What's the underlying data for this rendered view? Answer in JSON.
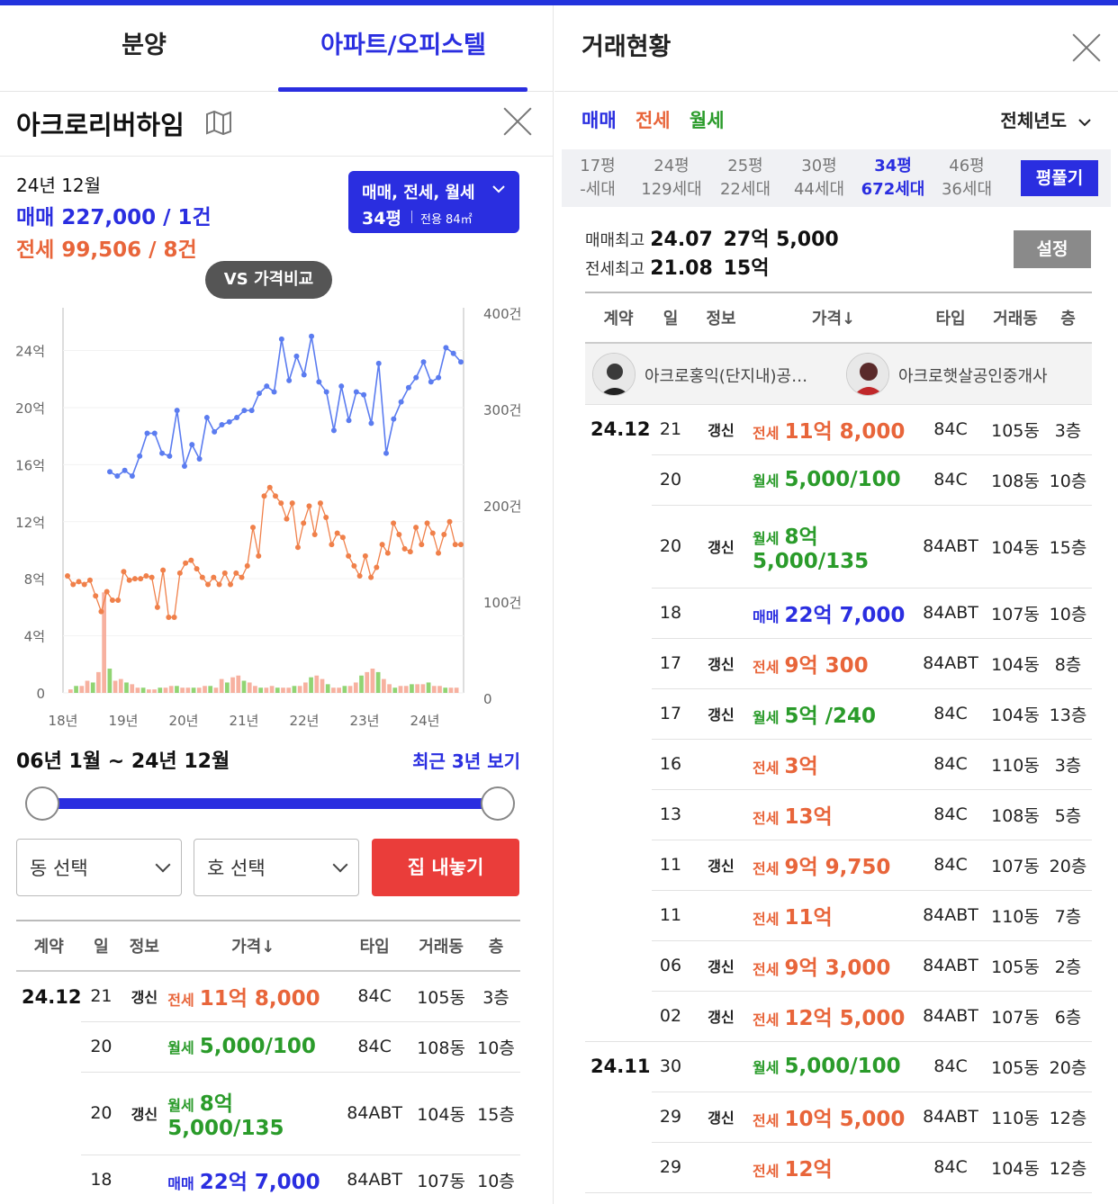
{
  "left": {
    "tabs": [
      "분양",
      "아파트/오피스텔"
    ],
    "apt_name": "아크로리버하임",
    "summary": {
      "date": "24년 12월",
      "sale": "매매 227,000 / 1건",
      "rent": "전세 99,506 / 8건"
    },
    "selector": {
      "types": "매매, 전세, 월세",
      "pyeong": "34평",
      "area": "전용 84㎡"
    },
    "vs_button": "VS 가격비교",
    "chart_data": {
      "type": "line",
      "x_ticks": [
        "18년",
        "19년",
        "20년",
        "21년",
        "22년",
        "23년",
        "24년"
      ],
      "y_left_ticks": [
        "24억",
        "20억",
        "16억",
        "12억",
        "8억",
        "4억",
        "0"
      ],
      "y_right_ticks": [
        "400건",
        "300건",
        "200건",
        "100건",
        "0"
      ],
      "ylim_left": [
        0,
        27
      ],
      "ylim_right": [
        0,
        400
      ],
      "series": [
        {
          "kind": "매매",
          "color": "#5b7cf0",
          "values": [
            15.5,
            15.2,
            15.6,
            15.2,
            16.6,
            18.2,
            18.2,
            16.8,
            16.6,
            19.8,
            15.9,
            17.4,
            16.4,
            19.3,
            18.3,
            18.8,
            19,
            19.3,
            19.8,
            19.8,
            21,
            21.5,
            21.1,
            24.8,
            21.9,
            23.6,
            22.3,
            25,
            21.8,
            21.1,
            18.4,
            21.5,
            19.1,
            21.1,
            20.9,
            18.9,
            23.1,
            16.8,
            19.2,
            20.4,
            21.4,
            22.1,
            23.2,
            21.8,
            22.1,
            24.2,
            23.8,
            23.2
          ]
        },
        {
          "kind": "전세",
          "color": "#f0804a",
          "values": [
            8.2,
            7.6,
            7.8,
            7.6,
            7.9,
            6.8,
            5.7,
            7.1,
            6.5,
            6.5,
            8.5,
            7.9,
            8,
            8,
            8.2,
            8.1,
            6,
            8.6,
            5.3,
            5.3,
            8.4,
            9.1,
            9.3,
            8.7,
            8.1,
            7.6,
            8.1,
            7.6,
            8.4,
            7.6,
            8.4,
            8.1,
            8.9,
            11.6,
            9.6,
            13.8,
            14.4,
            13.8,
            13.3,
            12.2,
            13.3,
            10.2,
            11.9,
            13.1,
            11.1,
            13.3,
            12.3,
            10.4,
            11.2,
            10.9,
            9.6,
            8.9,
            8.2,
            9.6,
            8.1,
            8.8,
            10.4,
            9.8,
            11.9,
            11.1,
            10.1,
            9.9,
            11.6,
            10.4,
            11.9,
            11.2,
            9.8,
            11.1,
            12,
            10.4,
            10.4
          ]
        }
      ],
      "volume_bars": [
        2,
        4,
        4,
        7,
        6,
        12,
        58,
        14,
        7,
        8,
        6,
        5,
        3,
        3,
        2,
        2,
        3,
        3,
        4,
        4,
        3,
        3,
        3,
        3,
        4,
        4,
        3,
        8,
        6,
        9,
        10,
        7,
        6,
        4,
        3,
        3,
        4,
        3,
        3,
        3,
        4,
        4,
        6,
        9,
        10,
        8,
        5,
        3,
        3,
        4,
        4,
        6,
        10,
        12,
        14,
        12,
        8,
        5,
        3,
        4,
        4,
        5,
        5,
        5,
        6,
        4,
        4,
        3,
        3,
        3
      ]
    },
    "range": {
      "label": "06년 1월 ~ 24년 12월",
      "link": "최근 3년 보기"
    },
    "dropdowns": {
      "dong": "동 선택",
      "ho": "호 선택",
      "list_button": "집 내놓기"
    },
    "table": {
      "headers": [
        "계약",
        "일",
        "정보",
        "가격↓",
        "타입",
        "거래동",
        "층"
      ],
      "rows": [
        {
          "date": "24.12",
          "day": "21",
          "info": "갱신",
          "kind": "전세",
          "kindClass": "c-jeon",
          "price": "11억 8,000",
          "type": "84C",
          "dong": "105동",
          "floor": "3층"
        },
        {
          "date": "",
          "day": "20",
          "info": "",
          "kind": "월세",
          "kindClass": "c-wol",
          "price": "5,000/100",
          "type": "84C",
          "dong": "108동",
          "floor": "10층"
        },
        {
          "date": "",
          "day": "20",
          "info": "갱신",
          "kind": "월세",
          "kindClass": "c-wol",
          "price": "8억 5,000/135",
          "type": "84ABT",
          "dong": "104동",
          "floor": "15층"
        },
        {
          "date": "",
          "day": "18",
          "info": "",
          "kind": "매매",
          "kindClass": "c-sale",
          "price": "22억 7,000",
          "type": "84ABT",
          "dong": "107동",
          "floor": "10층"
        }
      ]
    }
  },
  "right": {
    "title": "거래현황",
    "filters": [
      "매매",
      "전세",
      "월세"
    ],
    "year_select": "전체년도",
    "sizes": [
      {
        "p": "17평",
        "h": "-세대"
      },
      {
        "p": "24평",
        "h": "129세대"
      },
      {
        "p": "25평",
        "h": "22세대"
      },
      {
        "p": "30평",
        "h": "44세대"
      },
      {
        "p": "34평",
        "h": "672세대"
      },
      {
        "p": "46평",
        "h": "36세대"
      }
    ],
    "pyeong_btn": "평풀기",
    "max_sale": {
      "label": "매매최고",
      "date": "24.07",
      "price": "27억 5,000"
    },
    "max_rent": {
      "label": "전세최고",
      "date": "21.08",
      "price": "15억"
    },
    "settings_btn": "설정",
    "agents": [
      "아크로홍익(단지내)공…",
      "아크로햇살공인중개사"
    ],
    "headers": [
      "계약",
      "일",
      "정보",
      "가격↓",
      "타입",
      "거래동",
      "층"
    ],
    "rows": [
      {
        "date": "24.12",
        "day": "21",
        "info": "갱신",
        "kind": "전세",
        "kindClass": "c-jeon",
        "price": "11억 8,000",
        "type": "84C",
        "dong": "105동",
        "floor": "3층"
      },
      {
        "date": "",
        "day": "20",
        "info": "",
        "kind": "월세",
        "kindClass": "c-wol",
        "price": "5,000/100",
        "type": "84C",
        "dong": "108동",
        "floor": "10층"
      },
      {
        "date": "",
        "day": "20",
        "info": "갱신",
        "kind": "월세",
        "kindClass": "c-wol",
        "price": "8억 5,000/135",
        "type": "84ABT",
        "dong": "104동",
        "floor": "15층"
      },
      {
        "date": "",
        "day": "18",
        "info": "",
        "kind": "매매",
        "kindClass": "c-sale",
        "price": "22억 7,000",
        "type": "84ABT",
        "dong": "107동",
        "floor": "10층"
      },
      {
        "date": "",
        "day": "17",
        "info": "갱신",
        "kind": "전세",
        "kindClass": "c-jeon",
        "price": "9억 300",
        "type": "84ABT",
        "dong": "104동",
        "floor": "8층"
      },
      {
        "date": "",
        "day": "17",
        "info": "갱신",
        "kind": "월세",
        "kindClass": "c-wol",
        "price": "5억 /240",
        "type": "84C",
        "dong": "104동",
        "floor": "13층"
      },
      {
        "date": "",
        "day": "16",
        "info": "",
        "kind": "전세",
        "kindClass": "c-jeon",
        "price": "3억",
        "type": "84C",
        "dong": "110동",
        "floor": "3층"
      },
      {
        "date": "",
        "day": "13",
        "info": "",
        "kind": "전세",
        "kindClass": "c-jeon",
        "price": "13억",
        "type": "84C",
        "dong": "108동",
        "floor": "5층"
      },
      {
        "date": "",
        "day": "11",
        "info": "갱신",
        "kind": "전세",
        "kindClass": "c-jeon",
        "price": "9억 9,750",
        "type": "84C",
        "dong": "107동",
        "floor": "20층"
      },
      {
        "date": "",
        "day": "11",
        "info": "",
        "kind": "전세",
        "kindClass": "c-jeon",
        "price": "11억",
        "type": "84ABT",
        "dong": "110동",
        "floor": "7층"
      },
      {
        "date": "",
        "day": "06",
        "info": "갱신",
        "kind": "전세",
        "kindClass": "c-jeon",
        "price": "9억 3,000",
        "type": "84ABT",
        "dong": "105동",
        "floor": "2층"
      },
      {
        "date": "",
        "day": "02",
        "info": "갱신",
        "kind": "전세",
        "kindClass": "c-jeon",
        "price": "12억 5,000",
        "type": "84ABT",
        "dong": "107동",
        "floor": "6층"
      },
      {
        "date": "24.11",
        "day": "30",
        "info": "",
        "kind": "월세",
        "kindClass": "c-wol",
        "price": "5,000/100",
        "type": "84C",
        "dong": "105동",
        "floor": "20층"
      },
      {
        "date": "",
        "day": "29",
        "info": "갱신",
        "kind": "전세",
        "kindClass": "c-jeon",
        "price": "10억 5,000",
        "type": "84ABT",
        "dong": "110동",
        "floor": "12층"
      },
      {
        "date": "",
        "day": "29",
        "info": "",
        "kind": "전세",
        "kindClass": "c-jeon",
        "price": "12억",
        "type": "84C",
        "dong": "104동",
        "floor": "12층"
      }
    ]
  }
}
